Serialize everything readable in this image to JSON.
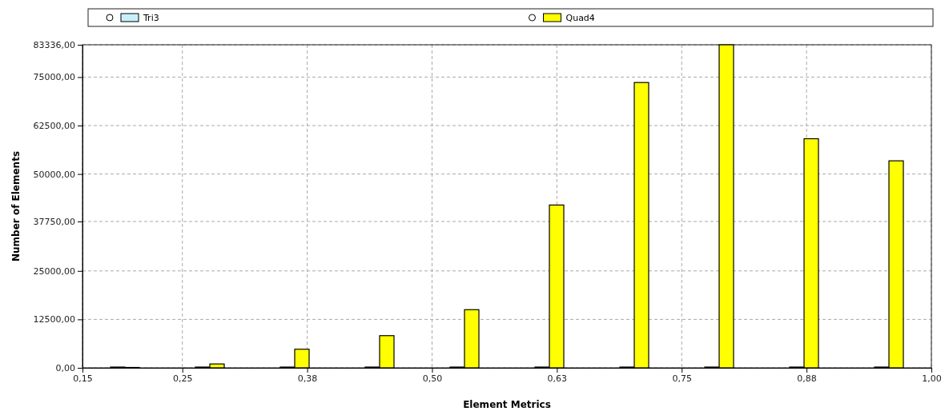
{
  "chart_data": {
    "type": "bar",
    "xlabel": "Element Metrics",
    "ylabel": "Number of Elements",
    "x": [
      0.1925,
      0.2775,
      0.3625,
      0.4475,
      0.5325,
      0.6175,
      0.7025,
      0.7875,
      0.8725,
      0.9575
    ],
    "series": [
      {
        "name": "Tri3",
        "color": "#c8f0f8",
        "values": [
          200,
          200,
          200,
          200,
          200,
          200,
          200,
          200,
          200,
          200
        ]
      },
      {
        "name": "Quad4",
        "color": "#ffff00",
        "values": [
          100,
          1000,
          4800,
          8300,
          15000,
          42000,
          73600,
          83336,
          59100,
          53400
        ]
      }
    ],
    "xlim": [
      0.15,
      1.0
    ],
    "xticks": [
      {
        "value": 0.15,
        "label": "0,15"
      },
      {
        "value": 0.25,
        "label": "0,25"
      },
      {
        "value": 0.375,
        "label": "0,38"
      },
      {
        "value": 0.5,
        "label": "0,50"
      },
      {
        "value": 0.625,
        "label": "0,63"
      },
      {
        "value": 0.75,
        "label": "0,75"
      },
      {
        "value": 0.875,
        "label": "0,88"
      },
      {
        "value": 1.0,
        "label": "1,00"
      }
    ],
    "ylim": [
      0,
      83336
    ],
    "yticks": [
      {
        "value": 0,
        "label": "0,00"
      },
      {
        "value": 12500,
        "label": "12500,00"
      },
      {
        "value": 25000,
        "label": "25000,00"
      },
      {
        "value": 37750,
        "label": "37750,00"
      },
      {
        "value": 50000,
        "label": "50000,00"
      },
      {
        "value": 62500,
        "label": "62500,00"
      },
      {
        "value": 75000,
        "label": "75000,00"
      },
      {
        "value": 83336,
        "label": "83336,00"
      }
    ],
    "grid": true,
    "legend": "top"
  }
}
